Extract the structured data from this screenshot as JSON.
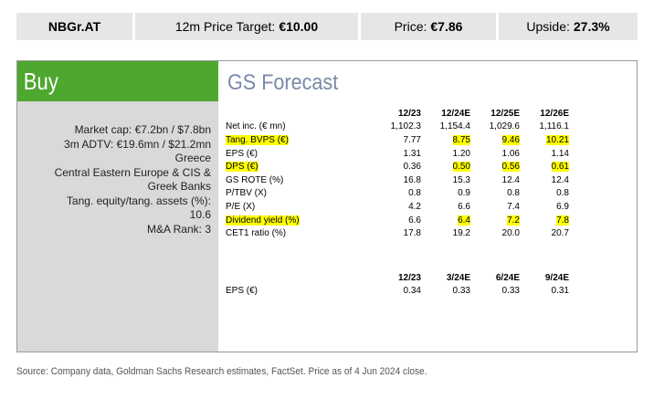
{
  "header": {
    "ticker": "NBGr.AT",
    "target_label": "12m Price Target:",
    "target_value": "€10.00",
    "price_label": "Price:",
    "price_value": "€7.86",
    "upside_label": "Upside:",
    "upside_value": "27.3%"
  },
  "rating": "Buy",
  "info_lines": [
    "Market cap: €7.2bn / $7.8bn",
    "3m ADTV: €19.6mn / $21.2mn",
    "Greece",
    "Central Eastern Europe & CIS &",
    "Greek Banks",
    "Tang. equity/tang. assets (%):",
    "10.6",
    "M&A Rank: 3"
  ],
  "forecast": {
    "title": "GS Forecast",
    "annual_headers": [
      "12/23",
      "12/24E",
      "12/25E",
      "12/26E"
    ],
    "rows": [
      {
        "label": "Net inc. (€ mn)",
        "values": [
          "1,102.3",
          "1,154.4",
          "1,029.6",
          "1,116.1"
        ]
      },
      {
        "label": "Tang. BVPS (€)",
        "values": [
          "7.77",
          "8.75",
          "9.46",
          "10.21"
        ]
      },
      {
        "label": "EPS (€)",
        "values": [
          "1.31",
          "1.20",
          "1.06",
          "1.14"
        ]
      },
      {
        "label": "DPS (€)",
        "values": [
          "0.36",
          "0.50",
          "0.56",
          "0.61"
        ]
      },
      {
        "label": "GS ROTE (%)",
        "values": [
          "16.8",
          "15.3",
          "12.4",
          "12.4"
        ]
      },
      {
        "label": "P/TBV (X)",
        "values": [
          "0.8",
          "0.9",
          "0.8",
          "0.8"
        ]
      },
      {
        "label": "P/E (X)",
        "values": [
          "4.2",
          "6.6",
          "7.4",
          "6.9"
        ]
      },
      {
        "label": "Dividend yield (%)",
        "values": [
          "6.6",
          "6.4",
          "7.2",
          "7.8"
        ]
      },
      {
        "label": "CET1 ratio (%)",
        "values": [
          "17.8",
          "19.2",
          "20.0",
          "20.7"
        ]
      }
    ],
    "quarterly_headers": [
      "12/23",
      "3/24E",
      "6/24E",
      "9/24E"
    ],
    "quarterly_rows": [
      {
        "label": "EPS (€)",
        "values": [
          "0.34",
          "0.33",
          "0.33",
          "0.31"
        ]
      }
    ]
  },
  "highlight_color": "#ffff00",
  "rating_color": "#4ea72e",
  "source": "Source: Company data, Goldman Sachs Research estimates, FactSet. Price as of 4 Jun 2024 close."
}
